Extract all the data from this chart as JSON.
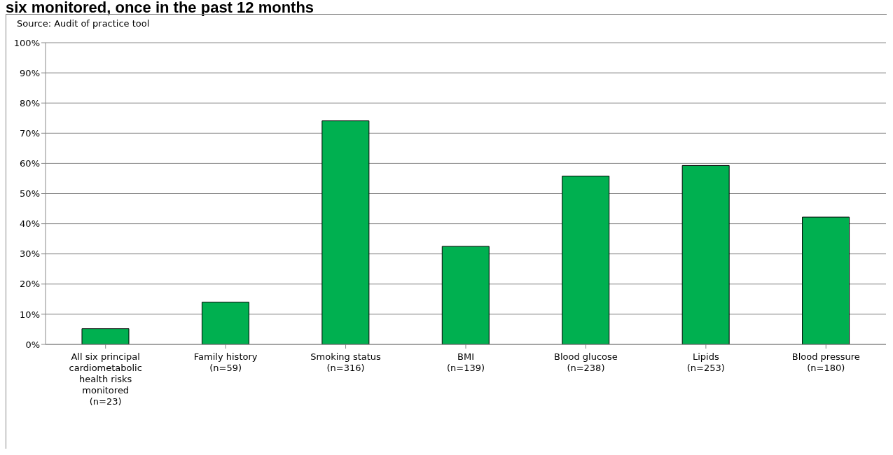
{
  "chart_data": {
    "type": "bar",
    "title": "six monitored, once in the past 12 months",
    "annotations": [
      "Source: Audit of practice tool"
    ],
    "categories": [
      "All six principal cardiometabolic health risks monitored (n=23)",
      "Family history (n=59)",
      "Smoking status (n=316)",
      "BMI (n=139)",
      "Blood glucose (n=238)",
      "Lipids (n=253)",
      "Blood pressure (n=180)"
    ],
    "values": [
      5.2,
      14.0,
      74.1,
      32.5,
      55.8,
      59.3,
      42.2
    ],
    "color": "#00b050",
    "ylim": [
      0,
      100
    ],
    "yticks": [
      {
        "value": 0,
        "label": "0%"
      },
      {
        "value": 10,
        "label": "10%"
      },
      {
        "value": 20,
        "label": "20%"
      },
      {
        "value": 30,
        "label": "30%"
      },
      {
        "value": 40,
        "label": "40%"
      },
      {
        "value": 50,
        "label": "50%"
      },
      {
        "value": 60,
        "label": "60%"
      },
      {
        "value": 70,
        "label": "70%"
      },
      {
        "value": 80,
        "label": "80%"
      },
      {
        "value": 90,
        "label": "90%"
      },
      {
        "value": 100,
        "label": "100%"
      }
    ],
    "grid": "y",
    "legend": false
  }
}
